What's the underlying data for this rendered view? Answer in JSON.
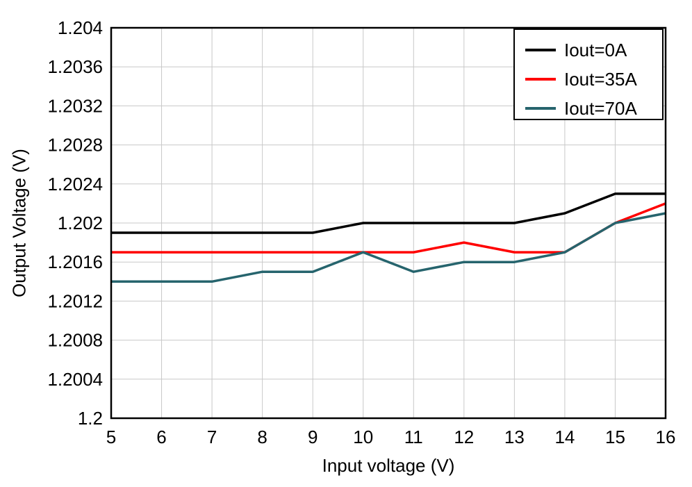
{
  "chart_data": {
    "type": "line",
    "title": "",
    "xlabel": "Input voltage (V)",
    "ylabel": "Output Voltage (V)",
    "xlim": [
      5,
      16
    ],
    "ylim": [
      1.2,
      1.204
    ],
    "x": [
      5,
      6,
      7,
      8,
      9,
      10,
      11,
      12,
      13,
      14,
      15,
      16
    ],
    "x_tick_labels": [
      "5",
      "6",
      "7",
      "8",
      "9",
      "10",
      "11",
      "12",
      "13",
      "14",
      "15",
      "16"
    ],
    "y_ticks": [
      1.2,
      1.2004,
      1.2008,
      1.2012,
      1.2016,
      1.202,
      1.2024,
      1.2028,
      1.2032,
      1.2036,
      1.204
    ],
    "y_tick_labels": [
      "1.2",
      "1.2004",
      "1.2008",
      "1.2012",
      "1.2016",
      "1.202",
      "1.2024",
      "1.2028",
      "1.2032",
      "1.2036",
      "1.204"
    ],
    "grid": true,
    "legend_position": "top-right",
    "series": [
      {
        "name": "Iout=0A",
        "color": "#000000",
        "values": [
          1.2019,
          1.2019,
          1.2019,
          1.2019,
          1.2019,
          1.202,
          1.202,
          1.202,
          1.202,
          1.2021,
          1.2023,
          1.2023
        ]
      },
      {
        "name": "Iout=35A",
        "color": "#ff0000",
        "values": [
          1.2017,
          1.2017,
          1.2017,
          1.2017,
          1.2017,
          1.2017,
          1.2017,
          1.2018,
          1.2017,
          1.2017,
          1.202,
          1.2022
        ]
      },
      {
        "name": "Iout=70A",
        "color": "#26646d",
        "values": [
          1.2014,
          1.2014,
          1.2014,
          1.2015,
          1.2015,
          1.2017,
          1.2015,
          1.2016,
          1.2016,
          1.2017,
          1.202,
          1.2021
        ]
      }
    ],
    "colors": {
      "grid": "#c8c8c8",
      "axis": "#000000",
      "background": "#ffffff"
    }
  }
}
